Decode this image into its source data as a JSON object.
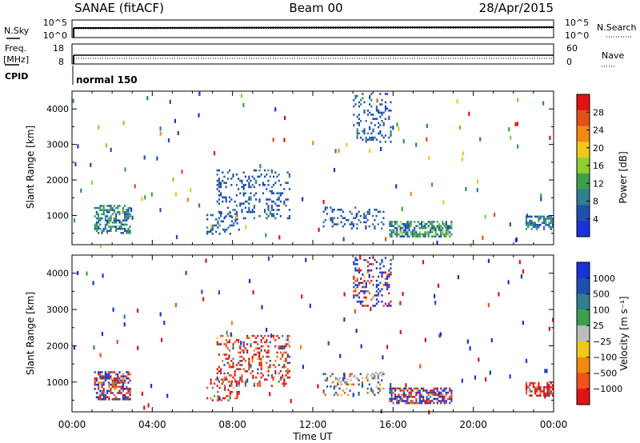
{
  "header": {
    "station": "SANAE (fitACF)",
    "beam": "Beam 00",
    "date": "28/Apr/2015"
  },
  "info_panels": {
    "nsky_label": "N.Sky",
    "nsky_ticks": [
      "10^5",
      "10^0"
    ],
    "nsearch_label": "N.Search",
    "nsearch_ticks": [
      "10^5",
      "10^0"
    ],
    "freq_label_1": "Freq.",
    "freq_label_2": "[MHz]",
    "freq_ticks": [
      "18",
      "8"
    ],
    "nave_label": "Nave",
    "nave_ticks": [
      "60",
      "0"
    ],
    "cpid_label": "CPID",
    "cpid_text": "normal 150"
  },
  "colors": {
    "power": [
      "#1a32d8",
      "#1f4fae",
      "#2f7f8f",
      "#3aa14a",
      "#8fcf2e",
      "#f2c81a",
      "#f08a10",
      "#e0521a",
      "#e01414"
    ],
    "velocity": [
      "#e01414",
      "#f0521a",
      "#f08a10",
      "#f2c81a",
      "#bdbdbd",
      "#3aa14a",
      "#2f7f8f",
      "#1f4fae",
      "#1a32d8"
    ],
    "ground_scatter": "#b0b0b0"
  },
  "chart_data": [
    {
      "type": "heatmap",
      "name": "power",
      "ylabel": "Slant Range [km]",
      "xlabel": "",
      "x_ticks": [
        "00:00",
        "04:00",
        "08:00",
        "12:00",
        "16:00",
        "20:00",
        "00:00"
      ],
      "xlim": [
        0,
        24
      ],
      "ylim": [
        180,
        4500
      ],
      "y_ticks": [
        1000,
        2000,
        3000,
        4000
      ],
      "colorbar": {
        "label": "Power [dB]",
        "ticks": [
          "28",
          "24",
          "20",
          "16",
          "12",
          "8",
          "4"
        ],
        "range": [
          0,
          32
        ]
      },
      "scatter_regions": [
        {
          "t_start": 1.1,
          "t_end": 2.9,
          "r_min": 500,
          "r_max": 1300,
          "value_range": [
            4,
            14
          ],
          "density": 0.55
        },
        {
          "t_start": 6.7,
          "t_end": 8.3,
          "r_min": 500,
          "r_max": 1100,
          "value_range": [
            4,
            8
          ],
          "density": 0.25
        },
        {
          "t_start": 7.2,
          "t_end": 10.8,
          "r_min": 900,
          "r_max": 2300,
          "value_range": [
            4,
            8
          ],
          "density": 0.2
        },
        {
          "t_start": 12.5,
          "t_end": 15.5,
          "r_min": 650,
          "r_max": 1250,
          "value_range": [
            4,
            8
          ],
          "density": 0.2
        },
        {
          "t_start": 14.0,
          "t_end": 15.9,
          "r_min": 3100,
          "r_max": 4450,
          "value_range": [
            4,
            8
          ],
          "density": 0.25
        },
        {
          "t_start": 15.8,
          "t_end": 18.9,
          "r_min": 400,
          "r_max": 850,
          "value_range": [
            4,
            16
          ],
          "density": 0.65
        },
        {
          "t_start": 22.6,
          "t_end": 24.0,
          "r_min": 600,
          "r_max": 1000,
          "value_range": [
            4,
            12
          ],
          "density": 0.6
        }
      ]
    },
    {
      "type": "heatmap",
      "name": "velocity",
      "ylabel": "Slant Range [km]",
      "xlabel": "Time UT",
      "x_ticks": [
        "00:00",
        "04:00",
        "08:00",
        "12:00",
        "16:00",
        "20:00",
        "00:00"
      ],
      "xlim": [
        0,
        24
      ],
      "ylim": [
        180,
        4500
      ],
      "y_ticks": [
        1000,
        2000,
        3000,
        4000
      ],
      "colorbar": {
        "label": "Velocity [m s⁻¹]",
        "ticks": [
          "1000",
          "500",
          "100",
          "25",
          "−25",
          "−100",
          "−500",
          "−1000"
        ],
        "range": [
          -1000,
          1000
        ]
      },
      "scatter_regions": [
        {
          "t_start": 1.1,
          "t_end": 2.9,
          "r_min": 500,
          "r_max": 1300,
          "value_range": [
            -500,
            500
          ],
          "density": 0.55
        },
        {
          "t_start": 6.7,
          "t_end": 8.3,
          "r_min": 500,
          "r_max": 1100,
          "value_range": [
            -500,
            100
          ],
          "density": 0.25
        },
        {
          "t_start": 7.2,
          "t_end": 10.8,
          "r_min": 900,
          "r_max": 2300,
          "value_range": [
            -500,
            100
          ],
          "density": 0.25
        },
        {
          "t_start": 12.5,
          "t_end": 15.5,
          "r_min": 650,
          "r_max": 1250,
          "value_range": [
            -100,
            100
          ],
          "density": 0.2
        },
        {
          "t_start": 14.0,
          "t_end": 15.9,
          "r_min": 3100,
          "r_max": 4450,
          "value_range": [
            -500,
            1000
          ],
          "density": 0.25
        },
        {
          "t_start": 15.8,
          "t_end": 18.9,
          "r_min": 400,
          "r_max": 850,
          "value_range": [
            -500,
            500
          ],
          "density": 0.65
        },
        {
          "t_start": 22.6,
          "t_end": 24.0,
          "r_min": 600,
          "r_max": 1000,
          "value_range": [
            -1000,
            100
          ],
          "density": 0.6
        }
      ]
    }
  ]
}
